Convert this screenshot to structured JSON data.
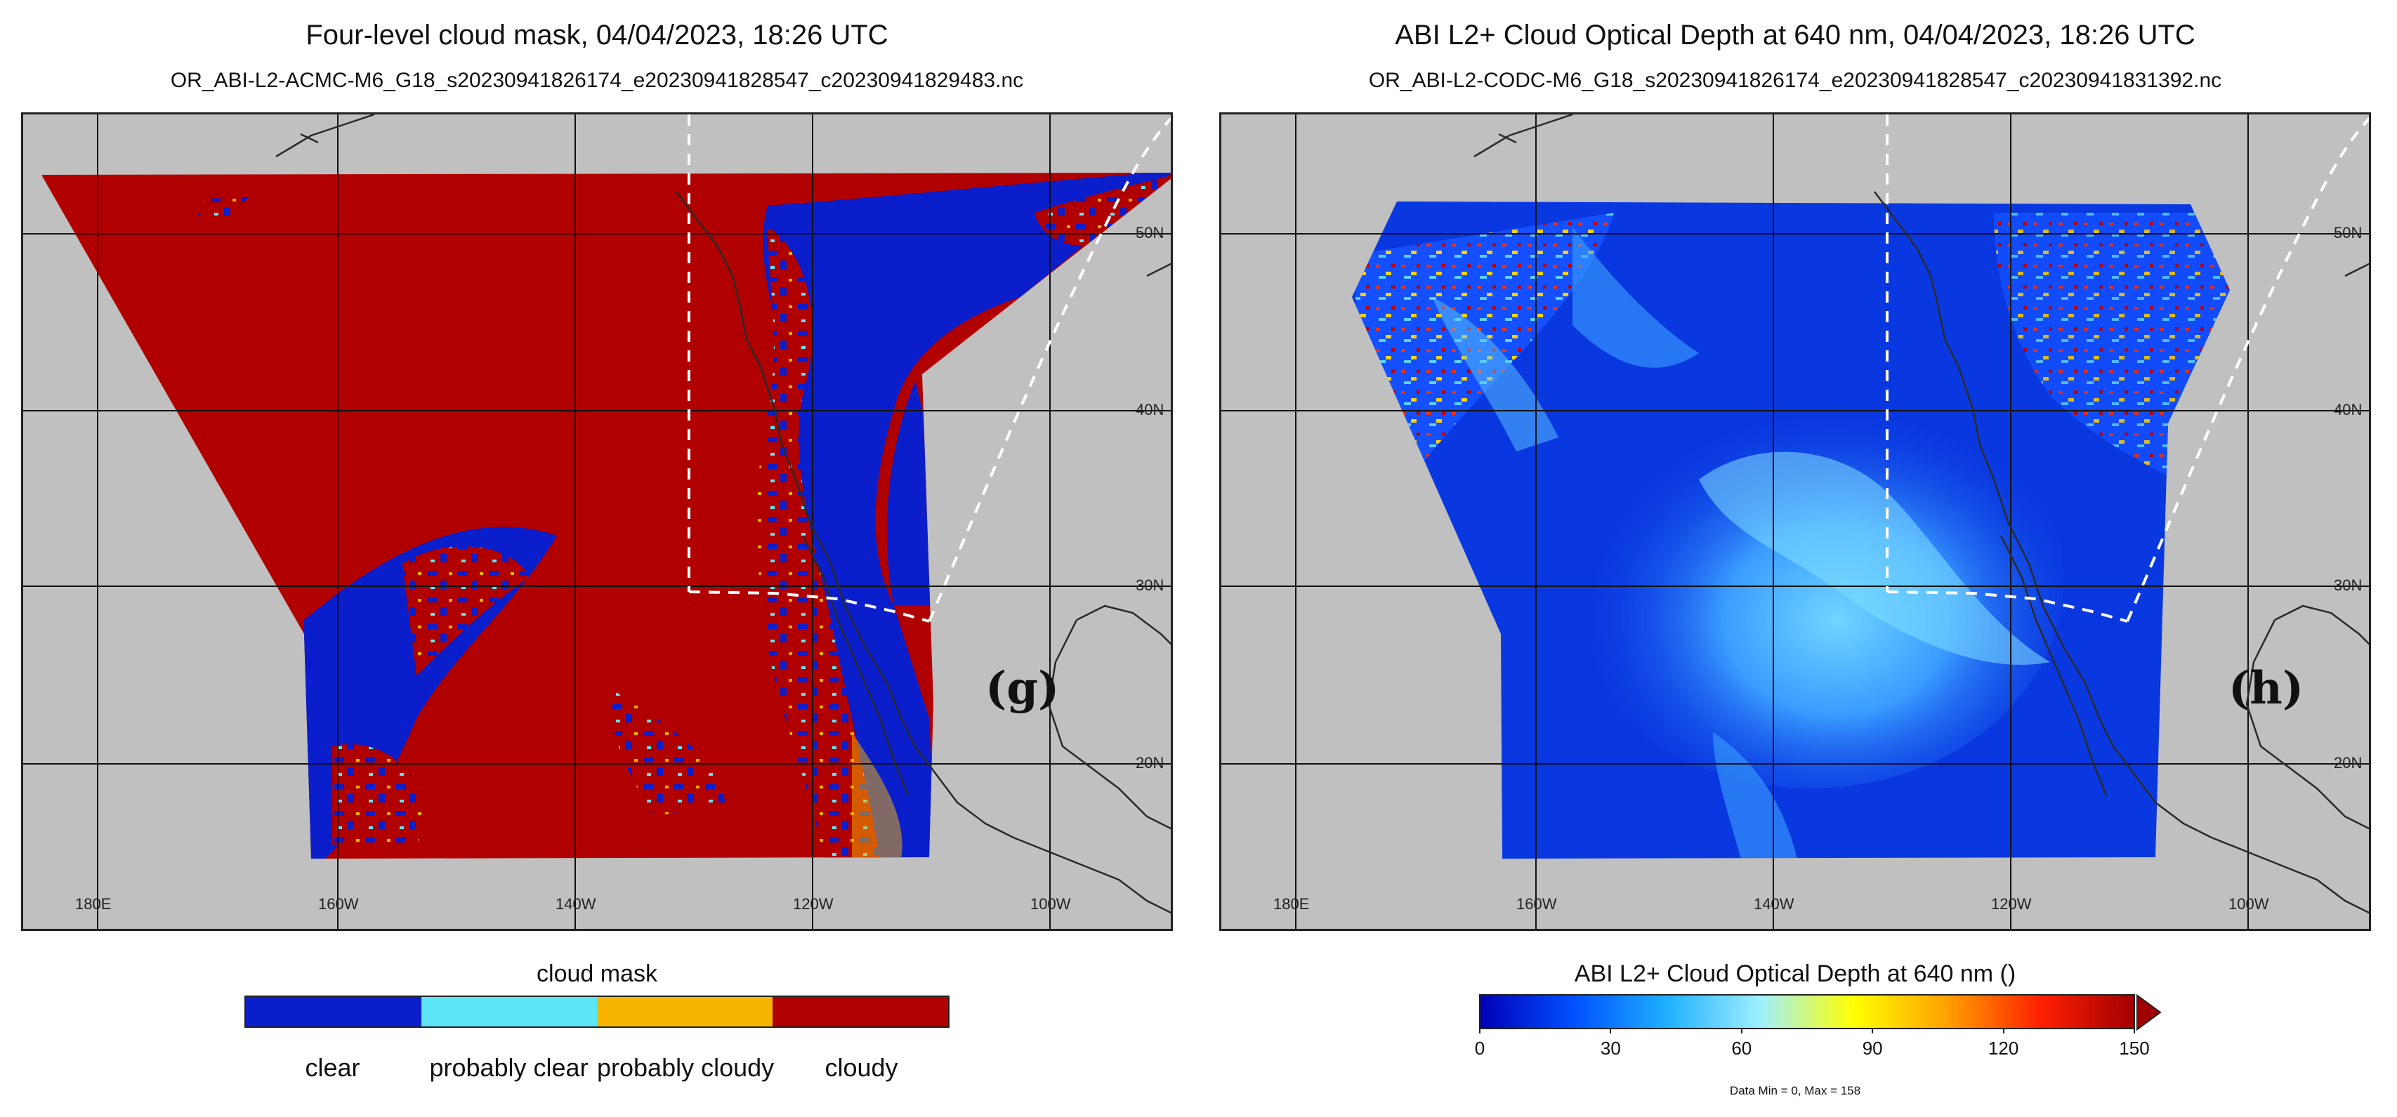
{
  "panels": [
    {
      "id": "g",
      "title": "Four-level cloud mask, 04/04/2023, 18:26 UTC",
      "subtitle": "OR_ABI-L2-ACMC-M6_G18_s20230941826174_e20230941828547_c20230941829483.nc",
      "panel_letter": "(g)",
      "lon_labels": [
        "180E",
        "160W",
        "140W",
        "120W",
        "100W"
      ],
      "lat_labels": [
        "50N",
        "40N",
        "30N",
        "20N"
      ],
      "colorbar": {
        "title": "cloud mask",
        "categories": [
          {
            "label": "clear",
            "color": "#0a1ecc"
          },
          {
            "label": "probably clear",
            "color": "#5ce6f5"
          },
          {
            "label": "probably cloudy",
            "color": "#f7b500"
          },
          {
            "label": "cloudy",
            "color": "#b00000"
          }
        ]
      }
    },
    {
      "id": "h",
      "title": "ABI L2+ Cloud Optical Depth at 640 nm, 04/04/2023, 18:26 UTC",
      "subtitle": "OR_ABI-L2-CODC-M6_G18_s20230941826174_e20230941828547_c20230941831392.nc",
      "panel_letter": "(h)",
      "lon_labels": [
        "180E",
        "160W",
        "140W",
        "120W",
        "100W"
      ],
      "lat_labels": [
        "50N",
        "40N",
        "30N",
        "20N"
      ],
      "colorbar": {
        "title": "ABI L2+ Cloud Optical Depth at 640 nm ()",
        "ticks": [
          "0",
          "30",
          "60",
          "90",
          "120",
          "150"
        ],
        "range": [
          0,
          150
        ],
        "extend": "max",
        "stats": "Data Min = 0, Max = 158",
        "colors": [
          "#0000b4",
          "#0050ff",
          "#20b0ff",
          "#9ff0ff",
          "#ffff00",
          "#ffa000",
          "#ff2000",
          "#a00000"
        ]
      }
    }
  ],
  "colors": {
    "land_background": "#c0c0c0",
    "coastline": "#2a2a2a",
    "gridline": "#111111",
    "subset_box": "#ffffff"
  }
}
